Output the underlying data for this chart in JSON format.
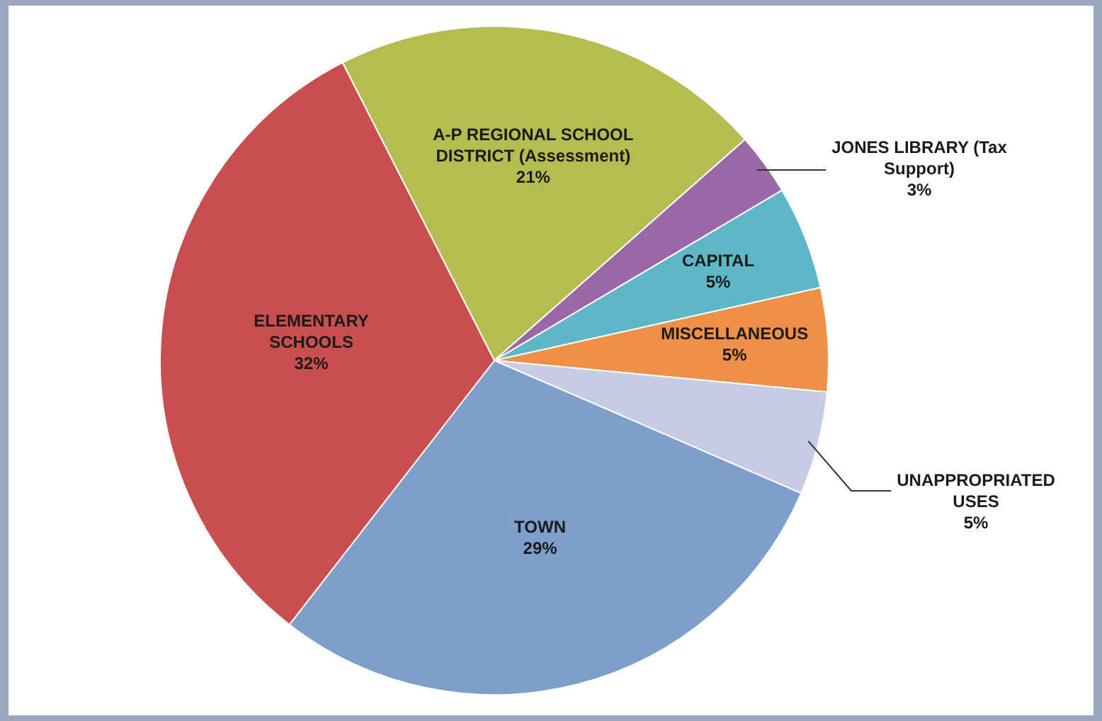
{
  "chart_data": {
    "type": "pie",
    "categories": [
      "A-P REGIONAL SCHOOL DISTRICT (Assessment)",
      "JONES LIBRARY (Tax Support)",
      "CAPITAL",
      "MISCELLANEOUS",
      "UNAPPROPRIATED USES",
      "TOWN",
      "ELEMENTARY SCHOOLS"
    ],
    "values": [
      21,
      3,
      5,
      5,
      5,
      29,
      32
    ],
    "value_labels": [
      "21%",
      "3%",
      "5%",
      "5%",
      "5%",
      "29%",
      "32%"
    ],
    "colors": [
      "#b4bd50",
      "#9a68a6",
      "#5db7c4",
      "#ef9048",
      "#c7cce6",
      "#7e9ecb",
      "#c94f4e"
    ],
    "legend": false
  }
}
